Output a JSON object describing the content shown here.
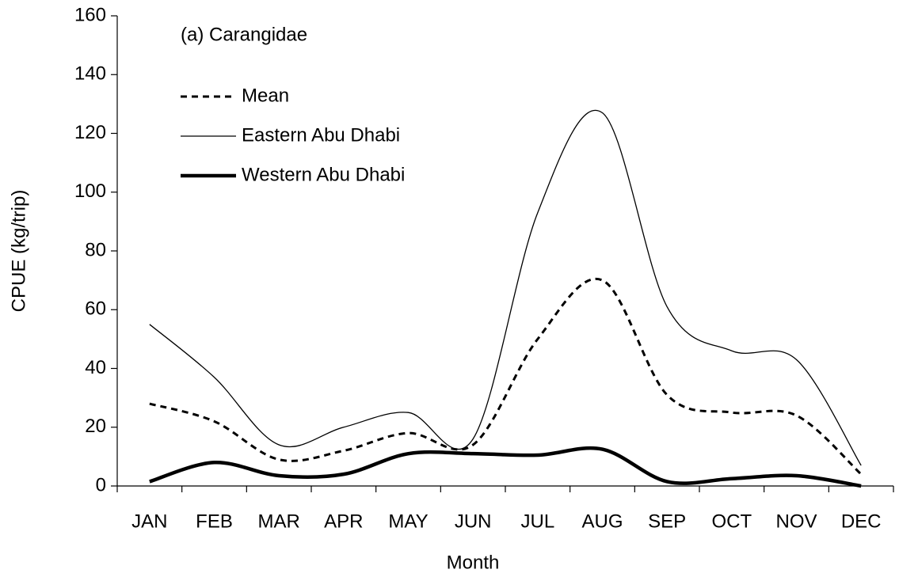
{
  "chart_data": {
    "type": "line",
    "annotation": "(a) Carangidae",
    "xlabel": "Month",
    "ylabel": "CPUE (kg/trip)",
    "categories": [
      "JAN",
      "FEB",
      "MAR",
      "APR",
      "MAY",
      "JUN",
      "JUL",
      "AUG",
      "SEP",
      "OCT",
      "NOV",
      "DEC"
    ],
    "series": [
      {
        "name": "Mean",
        "color": "#000000",
        "style": "dashed",
        "values": [
          28,
          22,
          9,
          12,
          18,
          14,
          50,
          70,
          31,
          25,
          24,
          4
        ]
      },
      {
        "name": "Eastern Abu Dhabi",
        "color": "#000000",
        "style": "thin",
        "values": [
          55,
          37,
          14,
          20,
          25,
          16,
          93,
          127,
          61,
          46,
          43,
          7
        ]
      },
      {
        "name": "Western Abu Dhabi",
        "color": "#000000",
        "style": "thick",
        "values": [
          1.5,
          8,
          3.5,
          4,
          11,
          11,
          10.5,
          12.5,
          1.5,
          2.5,
          3.5,
          0
        ]
      }
    ],
    "ylim": [
      0,
      160
    ],
    "yticks": [
      0,
      20,
      40,
      60,
      80,
      100,
      120,
      140,
      160
    ],
    "grid": false,
    "smooth": true,
    "legend": "upper left"
  }
}
